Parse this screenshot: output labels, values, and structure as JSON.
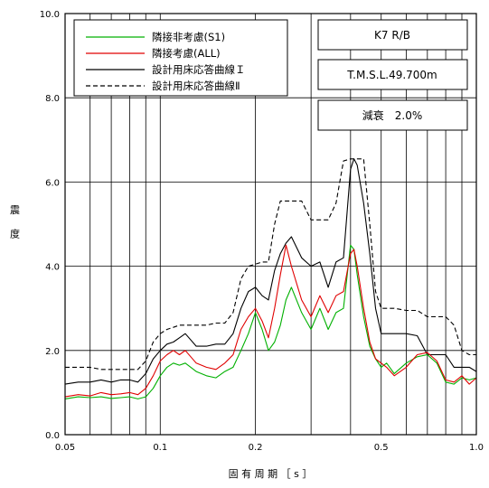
{
  "chart_data": {
    "type": "line",
    "title": "",
    "xlabel": "固 有 周 期 ［ s ］",
    "ylabel": "震 度",
    "xscale": "log",
    "xlim": [
      0.05,
      1.0
    ],
    "ylim": [
      0.0,
      10.0
    ],
    "x_ticks": [
      0.05,
      0.1,
      0.2,
      0.5,
      1.0
    ],
    "x_tick_labels": [
      "0.05",
      "0.1",
      "0.2",
      "0.5",
      "1.0"
    ],
    "y_ticks": [
      0,
      2,
      4,
      6,
      8,
      10
    ],
    "y_tick_labels": [
      "0.0",
      "2.0",
      "4.0",
      "6.0",
      "8.0",
      "10.0"
    ],
    "grid": true,
    "legend_position": "top-left",
    "info_boxes": [
      "K7 R/B",
      "T.M.S.L.49.700m",
      "減衰　2.0%"
    ],
    "series": [
      {
        "name": "隣接非考慮(S1)",
        "color": "#00b000",
        "style": "solid",
        "x": [
          0.05,
          0.055,
          0.06,
          0.065,
          0.07,
          0.075,
          0.08,
          0.085,
          0.09,
          0.095,
          0.1,
          0.105,
          0.11,
          0.115,
          0.12,
          0.13,
          0.14,
          0.15,
          0.16,
          0.17,
          0.18,
          0.19,
          0.2,
          0.21,
          0.22,
          0.23,
          0.24,
          0.25,
          0.26,
          0.28,
          0.3,
          0.32,
          0.34,
          0.36,
          0.38,
          0.4,
          0.41,
          0.42,
          0.44,
          0.46,
          0.48,
          0.5,
          0.52,
          0.55,
          0.6,
          0.65,
          0.7,
          0.75,
          0.8,
          0.85,
          0.9,
          0.95,
          1.0
        ],
        "y": [
          0.85,
          0.9,
          0.88,
          0.9,
          0.86,
          0.88,
          0.9,
          0.85,
          0.9,
          1.1,
          1.4,
          1.6,
          1.7,
          1.65,
          1.7,
          1.5,
          1.4,
          1.35,
          1.5,
          1.6,
          2.0,
          2.4,
          2.9,
          2.5,
          2.0,
          2.2,
          2.6,
          3.2,
          3.5,
          2.9,
          2.5,
          3.0,
          2.5,
          2.9,
          3.0,
          4.5,
          4.4,
          3.8,
          2.8,
          2.1,
          1.8,
          1.6,
          1.7,
          1.45,
          1.7,
          1.85,
          1.9,
          1.7,
          1.25,
          1.2,
          1.35,
          1.3,
          1.35
        ]
      },
      {
        "name": "隣接考慮(ALL)",
        "color": "#e00000",
        "style": "solid",
        "x": [
          0.05,
          0.055,
          0.06,
          0.065,
          0.07,
          0.075,
          0.08,
          0.085,
          0.09,
          0.095,
          0.1,
          0.105,
          0.11,
          0.115,
          0.12,
          0.13,
          0.14,
          0.15,
          0.16,
          0.17,
          0.18,
          0.19,
          0.2,
          0.21,
          0.22,
          0.23,
          0.24,
          0.25,
          0.26,
          0.28,
          0.3,
          0.32,
          0.34,
          0.36,
          0.38,
          0.4,
          0.41,
          0.42,
          0.44,
          0.46,
          0.48,
          0.5,
          0.52,
          0.55,
          0.6,
          0.65,
          0.7,
          0.75,
          0.8,
          0.85,
          0.9,
          0.95,
          1.0
        ],
        "y": [
          0.9,
          0.95,
          0.92,
          1.0,
          0.95,
          0.97,
          1.0,
          0.95,
          1.1,
          1.4,
          1.75,
          1.9,
          2.0,
          1.9,
          2.0,
          1.7,
          1.6,
          1.55,
          1.7,
          1.9,
          2.5,
          2.8,
          3.0,
          2.7,
          2.3,
          3.0,
          3.8,
          4.5,
          4.0,
          3.2,
          2.8,
          3.3,
          2.9,
          3.3,
          3.4,
          4.3,
          4.4,
          4.0,
          3.0,
          2.2,
          1.8,
          1.7,
          1.6,
          1.4,
          1.6,
          1.9,
          1.95,
          1.75,
          1.3,
          1.25,
          1.4,
          1.2,
          1.35
        ]
      },
      {
        "name": "設計用床応答曲線Ｉ",
        "color": "#000000",
        "style": "solid",
        "x": [
          0.05,
          0.055,
          0.06,
          0.065,
          0.07,
          0.075,
          0.08,
          0.085,
          0.09,
          0.095,
          0.1,
          0.105,
          0.11,
          0.115,
          0.12,
          0.13,
          0.14,
          0.15,
          0.16,
          0.17,
          0.18,
          0.19,
          0.2,
          0.21,
          0.22,
          0.23,
          0.24,
          0.25,
          0.26,
          0.28,
          0.3,
          0.32,
          0.34,
          0.36,
          0.38,
          0.4,
          0.41,
          0.42,
          0.44,
          0.46,
          0.48,
          0.5,
          0.52,
          0.55,
          0.6,
          0.65,
          0.7,
          0.75,
          0.8,
          0.85,
          0.9,
          0.95,
          1.0
        ],
        "y": [
          1.2,
          1.25,
          1.25,
          1.3,
          1.25,
          1.3,
          1.3,
          1.25,
          1.45,
          1.8,
          2.0,
          2.15,
          2.2,
          2.3,
          2.4,
          2.1,
          2.1,
          2.15,
          2.15,
          2.4,
          3.0,
          3.4,
          3.5,
          3.3,
          3.2,
          3.9,
          4.3,
          4.55,
          4.7,
          4.2,
          4.0,
          4.1,
          3.5,
          4.1,
          4.2,
          6.3,
          6.55,
          6.4,
          5.5,
          4.3,
          3.0,
          2.4,
          2.4,
          2.4,
          2.4,
          2.35,
          1.9,
          1.9,
          1.9,
          1.6,
          1.6,
          1.6,
          1.5
        ]
      },
      {
        "name": "設計用床応答曲線Ⅱ",
        "color": "#000000",
        "style": "dashed",
        "x": [
          0.05,
          0.055,
          0.06,
          0.065,
          0.07,
          0.075,
          0.08,
          0.085,
          0.09,
          0.095,
          0.1,
          0.105,
          0.11,
          0.115,
          0.12,
          0.13,
          0.14,
          0.15,
          0.16,
          0.17,
          0.18,
          0.19,
          0.2,
          0.21,
          0.22,
          0.23,
          0.24,
          0.25,
          0.26,
          0.28,
          0.3,
          0.32,
          0.34,
          0.36,
          0.38,
          0.4,
          0.41,
          0.42,
          0.44,
          0.46,
          0.48,
          0.5,
          0.52,
          0.55,
          0.6,
          0.65,
          0.7,
          0.75,
          0.8,
          0.85,
          0.9,
          0.95,
          1.0
        ],
        "y": [
          1.6,
          1.6,
          1.6,
          1.55,
          1.55,
          1.55,
          1.55,
          1.55,
          1.75,
          2.2,
          2.4,
          2.5,
          2.55,
          2.6,
          2.6,
          2.6,
          2.6,
          2.65,
          2.65,
          2.9,
          3.7,
          4.0,
          4.05,
          4.1,
          4.1,
          5.0,
          5.55,
          5.55,
          5.55,
          5.55,
          5.1,
          5.1,
          5.1,
          5.5,
          6.5,
          6.55,
          6.55,
          6.55,
          6.55,
          5.0,
          3.4,
          3.0,
          3.0,
          3.0,
          2.95,
          2.95,
          2.8,
          2.8,
          2.8,
          2.6,
          2.0,
          1.9,
          1.9
        ]
      }
    ]
  }
}
